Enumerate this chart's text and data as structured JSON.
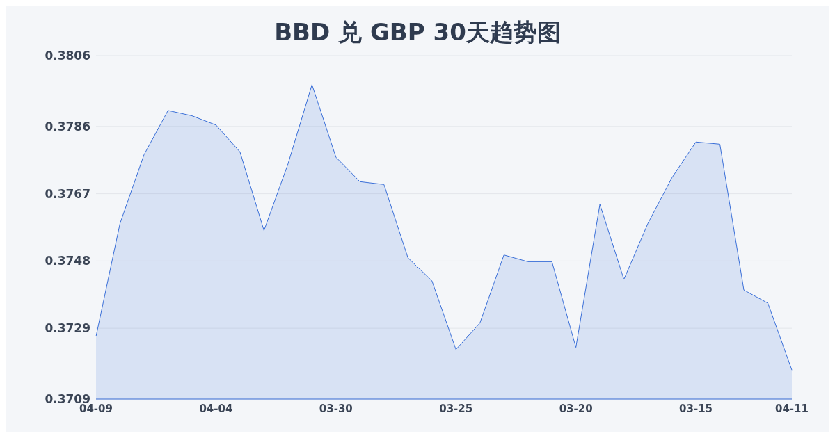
{
  "chart_data": {
    "type": "area",
    "title": "BBD 兑 GBP 30天趋势图",
    "categories": [
      "04-09",
      null,
      null,
      null,
      null,
      "04-04",
      null,
      null,
      null,
      null,
      "03-30",
      null,
      null,
      null,
      null,
      "03-25",
      null,
      null,
      null,
      null,
      "03-20",
      null,
      null,
      null,
      null,
      "03-15",
      null,
      null,
      null,
      "04-11"
    ],
    "series": [
      {
        "color": "#3a6fd8",
        "values": [
          0.37267,
          0.37586,
          0.3778,
          0.37905,
          0.3789,
          0.37864,
          0.37788,
          0.37566,
          0.37754,
          0.37978,
          0.37773,
          0.37704,
          0.37696,
          0.37489,
          0.37424,
          0.3723,
          0.37305,
          0.37497,
          0.37478,
          0.37478,
          0.37236,
          0.3764,
          0.37428,
          0.37586,
          0.37715,
          0.37816,
          0.3781,
          0.37398,
          0.37361,
          0.37172
        ]
      }
    ],
    "ylim": [
      0.3709,
      0.3806
    ],
    "yticks": [
      0.3709,
      0.3729,
      0.3748,
      0.3767,
      0.3786,
      0.3806
    ],
    "grid": "y",
    "marker": "none",
    "line_style": "solid"
  }
}
